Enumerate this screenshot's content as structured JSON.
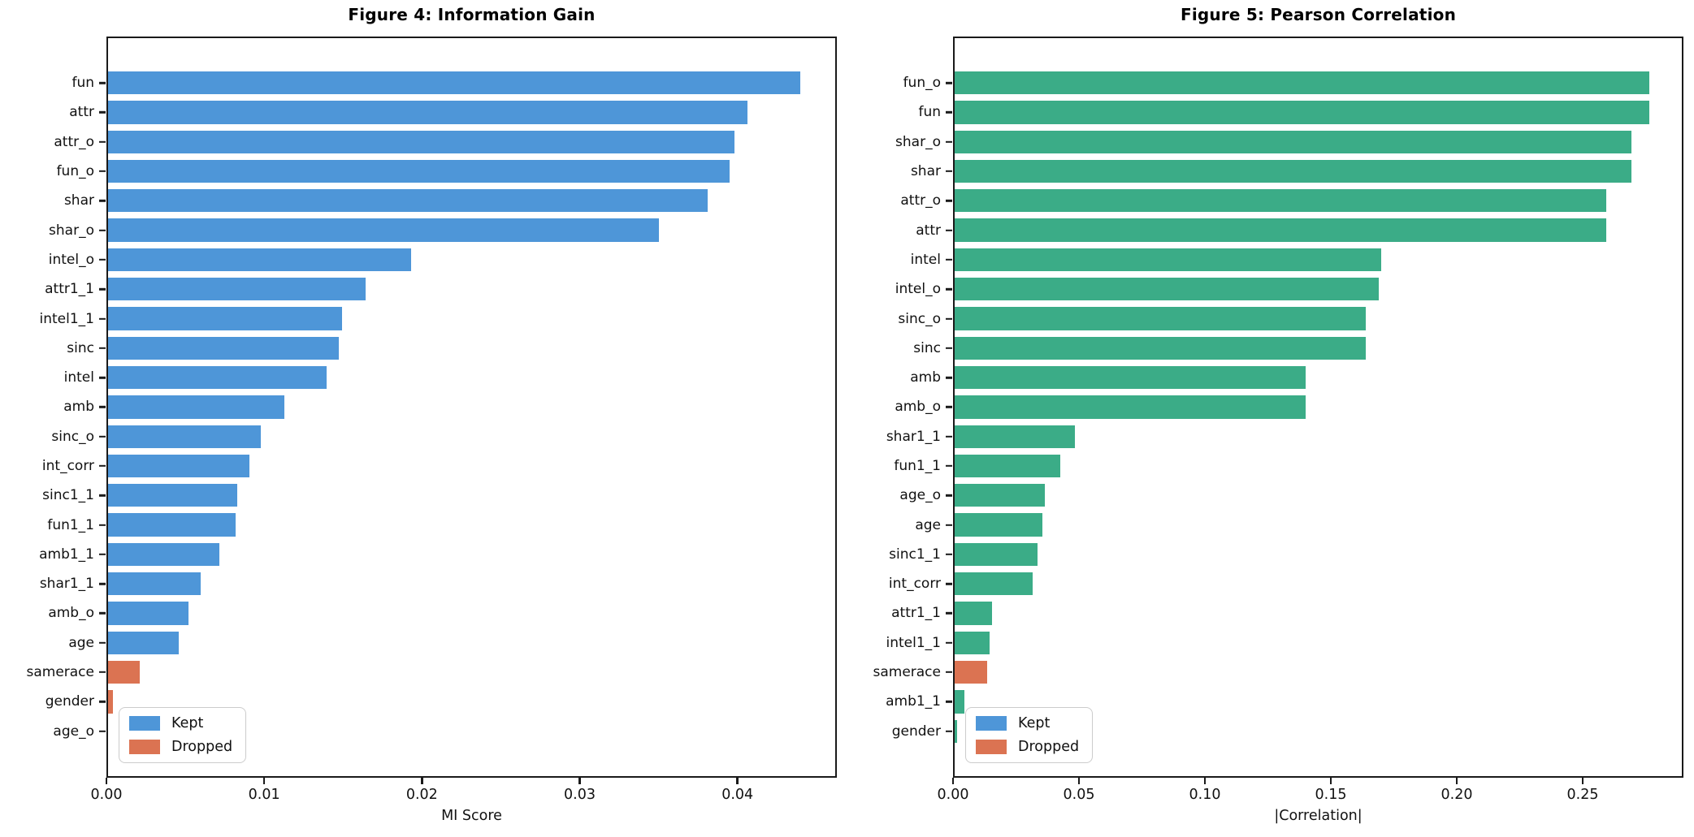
{
  "colors": {
    "kept_blue": "#4E96D8",
    "kept_green": "#3BAC87",
    "dropped_orange": "#DB7352",
    "axis": "#1a1a1a",
    "legend_border": "#cccccc",
    "background": "#ffffff"
  },
  "legend": {
    "kept_label": "Kept",
    "dropped_label": "Dropped",
    "kept_swatch_color": "#4E96D8",
    "dropped_swatch_color": "#DB7352",
    "position": "lower left"
  },
  "chart_data": [
    {
      "type": "bar",
      "orientation": "horizontal",
      "title": "Figure 4: Information Gain",
      "xlabel": "MI Score",
      "xlim": [
        0,
        0.0463
      ],
      "xticks": [
        0,
        0.01,
        0.02,
        0.03,
        0.04
      ],
      "xtick_labels": [
        "0.00",
        "0.01",
        "0.02",
        "0.03",
        "0.04"
      ],
      "grid": false,
      "bar_color_kept": "#4E96D8",
      "bar_color_dropped": "#DB7352",
      "categories": [
        "fun",
        "attr",
        "attr_o",
        "fun_o",
        "shar",
        "shar_o",
        "intel_o",
        "attr1_1",
        "intel1_1",
        "sinc",
        "intel",
        "amb",
        "sinc_o",
        "int_corr",
        "sinc1_1",
        "fun1_1",
        "amb1_1",
        "shar1_1",
        "amb_o",
        "age",
        "samerace",
        "gender",
        "age_o"
      ],
      "values": [
        0.0441,
        0.0407,
        0.0399,
        0.0396,
        0.0382,
        0.0351,
        0.0193,
        0.0164,
        0.0149,
        0.0147,
        0.0139,
        0.0112,
        0.0097,
        0.009,
        0.0082,
        0.0081,
        0.0071,
        0.0059,
        0.0051,
        0.0045,
        0.002,
        0.0003,
        0.0
      ],
      "status": [
        "kept",
        "kept",
        "kept",
        "kept",
        "kept",
        "kept",
        "kept",
        "kept",
        "kept",
        "kept",
        "kept",
        "kept",
        "kept",
        "kept",
        "kept",
        "kept",
        "kept",
        "kept",
        "kept",
        "kept",
        "dropped",
        "dropped",
        "kept"
      ]
    },
    {
      "type": "bar",
      "orientation": "horizontal",
      "title": "Figure 5: Pearson Correlation",
      "xlabel": "|Correlation|",
      "xlim": [
        0,
        0.29
      ],
      "xticks": [
        0,
        0.05,
        0.1,
        0.15,
        0.2,
        0.25
      ],
      "xtick_labels": [
        "0.00",
        "0.05",
        "0.10",
        "0.15",
        "0.20",
        "0.25"
      ],
      "grid": false,
      "bar_color_kept": "#3BAC87",
      "bar_color_dropped": "#DB7352",
      "categories": [
        "fun_o",
        "fun",
        "shar_o",
        "shar",
        "attr_o",
        "attr",
        "intel",
        "intel_o",
        "sinc_o",
        "sinc",
        "amb",
        "amb_o",
        "shar1_1",
        "fun1_1",
        "age_o",
        "age",
        "sinc1_1",
        "int_corr",
        "attr1_1",
        "intel1_1",
        "samerace",
        "amb1_1",
        "gender"
      ],
      "values": [
        0.277,
        0.277,
        0.27,
        0.27,
        0.26,
        0.26,
        0.17,
        0.169,
        0.164,
        0.164,
        0.14,
        0.14,
        0.048,
        0.042,
        0.036,
        0.035,
        0.033,
        0.031,
        0.015,
        0.014,
        0.013,
        0.004,
        0.001
      ],
      "status": [
        "kept",
        "kept",
        "kept",
        "kept",
        "kept",
        "kept",
        "kept",
        "kept",
        "kept",
        "kept",
        "kept",
        "kept",
        "kept",
        "kept",
        "kept",
        "kept",
        "kept",
        "kept",
        "kept",
        "kept",
        "dropped",
        "kept",
        "kept"
      ]
    }
  ]
}
